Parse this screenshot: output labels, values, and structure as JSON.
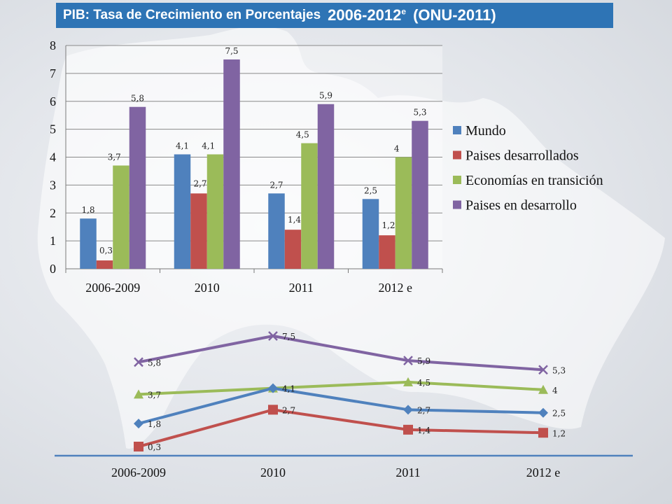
{
  "title": {
    "main": "PIB: Tasa de Crecimiento en Porcentajes",
    "years": "2006-2012",
    "superscript": "e",
    "source": "(ONU-2011)"
  },
  "colors": {
    "title_bar": "#2e74b5",
    "Mundo": "#4f81bd",
    "Paises desarrollados": "#c0504d",
    "Economías en transición": "#9bbb59",
    "Paises en desarrollo": "#8064a2"
  },
  "chart_data": [
    {
      "type": "bar",
      "categories": [
        "2006-2009",
        "2010",
        "2011",
        "2012 e"
      ],
      "series": [
        {
          "name": "Mundo",
          "values": [
            1.8,
            4.1,
            2.7,
            2.5
          ],
          "labels": [
            "1,8",
            "4,1",
            "2,7",
            "2,5"
          ]
        },
        {
          "name": "Paises desarrollados",
          "values": [
            0.3,
            2.7,
            1.4,
            1.2
          ],
          "labels": [
            "0,3",
            "2,7",
            "1,4",
            "1,2"
          ]
        },
        {
          "name": "Economías en transición",
          "values": [
            3.7,
            4.1,
            4.5,
            4
          ],
          "labels": [
            "3,7",
            "4,1",
            "4,5",
            "4"
          ]
        },
        {
          "name": "Paises en desarrollo",
          "values": [
            5.8,
            7.5,
            5.9,
            5.3
          ],
          "labels": [
            "5,8",
            "7,5",
            "5,9",
            "5,3"
          ]
        }
      ],
      "ylim": [
        0,
        8
      ],
      "yticks": [
        "0",
        "1",
        "2",
        "3",
        "4",
        "5",
        "6",
        "7",
        "8"
      ],
      "grid": true,
      "legend": "right"
    },
    {
      "type": "line",
      "categories": [
        "2006-2009",
        "2010",
        "2011",
        "2012 e"
      ],
      "series": [
        {
          "name": "Paises en desarrollo",
          "marker": "x",
          "values": [
            5.8,
            7.5,
            5.9,
            5.3
          ],
          "labels": [
            "5,8",
            "7,5",
            "5,9",
            "5,3"
          ]
        },
        {
          "name": "Economías en transición",
          "marker": "triangle",
          "values": [
            3.7,
            4.1,
            4.5,
            4
          ],
          "labels": [
            "3,7",
            "4,1",
            "4,5",
            "4"
          ]
        },
        {
          "name": "Mundo",
          "marker": "diamond",
          "values": [
            1.8,
            4.1,
            2.7,
            2.5
          ],
          "labels": [
            "1,8",
            "4,1",
            "2,7",
            "2,5"
          ]
        },
        {
          "name": "Paises desarrollados",
          "marker": "square",
          "values": [
            0.3,
            2.7,
            1.4,
            1.2
          ],
          "labels": [
            "0,3",
            "2,7",
            "1,4",
            "1,2"
          ]
        }
      ],
      "grid": false,
      "legend": "none"
    }
  ]
}
